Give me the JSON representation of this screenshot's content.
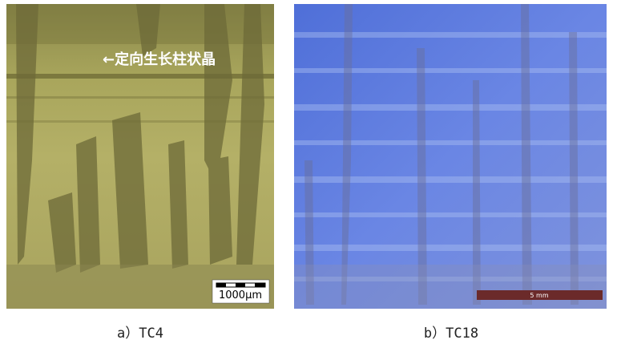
{
  "figure": {
    "panels": [
      {
        "caption": "a）TC4",
        "annotation": "←定向生长柱状晶",
        "scale_bar": "1000μm"
      },
      {
        "caption": "b）TC18",
        "scale_bar": "5 mm"
      }
    ]
  }
}
